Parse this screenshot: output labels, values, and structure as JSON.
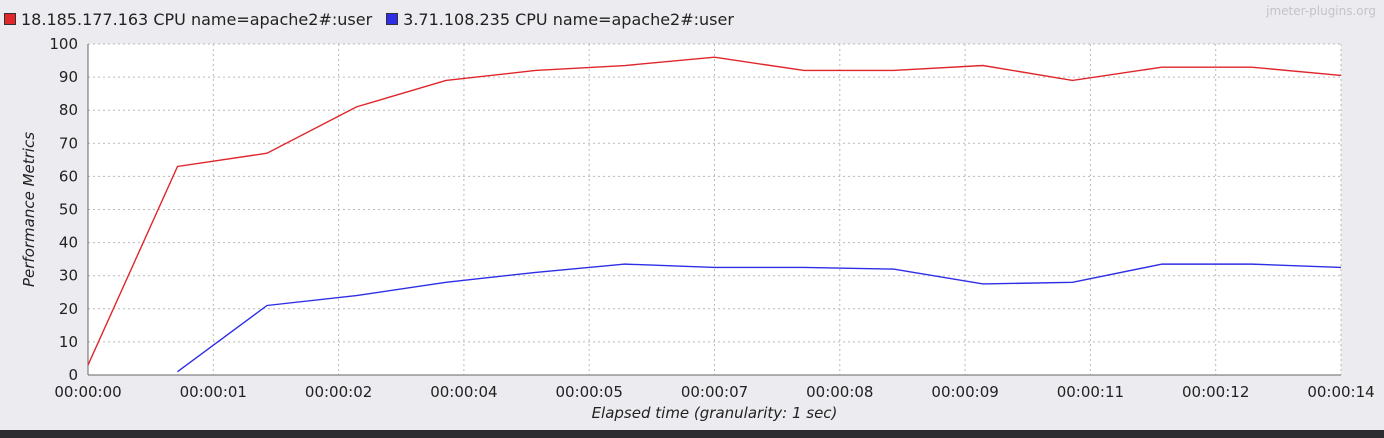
{
  "watermark": "jmeter-plugins.org",
  "colors": {
    "series_red": "#e0262b",
    "series_blue": "#2e2ee6",
    "plot_bg": "#ffffff",
    "grid": "#b9b9b9"
  },
  "chart_data": {
    "type": "line",
    "xlabel": "Elapsed time (granularity: 1 sec)",
    "ylabel": "Performance Metrics",
    "ylim": [
      0,
      100
    ],
    "xlim": [
      0,
      14
    ],
    "yticks": [
      0,
      10,
      20,
      30,
      40,
      50,
      60,
      70,
      80,
      90,
      100
    ],
    "xticks": [
      "00:00:00",
      "00:00:01",
      "00:00:02",
      "00:00:04",
      "00:00:05",
      "00:00:07",
      "00:00:08",
      "00:00:09",
      "00:00:11",
      "00:00:12",
      "00:00:14"
    ],
    "grid": true,
    "legend_position": "top-left",
    "series": [
      {
        "name": "18.185.177.163 CPU name=apache2#:user",
        "color": "#e0262b",
        "x": [
          0,
          1,
          2,
          3,
          4,
          5,
          6,
          7,
          8,
          9,
          10,
          11,
          12,
          13,
          14
        ],
        "y": [
          3,
          63,
          67,
          81,
          89,
          92,
          93.5,
          96,
          92,
          92,
          93.5,
          89,
          93,
          93,
          90.5
        ]
      },
      {
        "name": "3.71.108.235 CPU name=apache2#:user",
        "color": "#2e2ee6",
        "x": [
          1,
          2,
          3,
          4,
          5,
          6,
          7,
          8,
          9,
          10,
          11,
          12,
          13,
          14
        ],
        "y": [
          1,
          21,
          24,
          28,
          31,
          33.5,
          32.5,
          32.5,
          32,
          27.5,
          28,
          33.5,
          33.5,
          32.5
        ]
      }
    ]
  }
}
